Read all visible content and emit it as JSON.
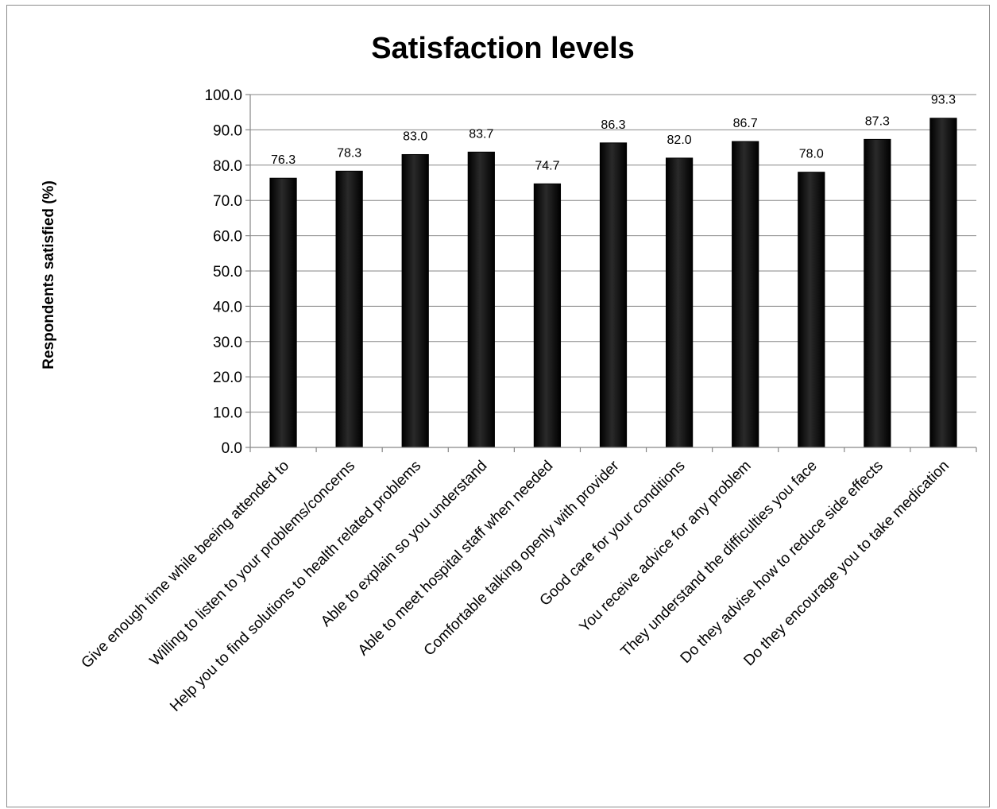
{
  "chart_data": {
    "type": "bar",
    "title": "Satisfaction levels",
    "xlabel": "",
    "ylabel": "Respondents satisfied (%)",
    "ylim": [
      0,
      100
    ],
    "ytick_step": 10,
    "ytick_labels": [
      "0.0",
      "10.0",
      "20.0",
      "30.0",
      "40.0",
      "50.0",
      "60.0",
      "70.0",
      "80.0",
      "90.0",
      "100.0"
    ],
    "grid": true,
    "legend": "none",
    "bar_color": "#000000",
    "categories": [
      "Give enough time while beeing attended to",
      "Willing to listen to your problems/concerns",
      "Help you to find solutions to health related problems",
      "Able to explain so you understand",
      "Able to meet hospital staff when needed",
      "Comfortable talking openly with provider",
      "Good care for your conditions",
      "You receive advice for any problem",
      "They understand the difficulties you face",
      "Do they advise how to reduce side effects",
      "Do they encourage you to take medication"
    ],
    "values": [
      76.3,
      78.3,
      83.0,
      83.7,
      74.7,
      86.3,
      82.0,
      86.7,
      78.0,
      87.3,
      93.3
    ],
    "data_labels": [
      "76.3",
      "78.3",
      "83.0",
      "83.7",
      "74.7",
      "86.3",
      "82.0",
      "86.7",
      "78.0",
      "87.3",
      "93.3"
    ]
  }
}
